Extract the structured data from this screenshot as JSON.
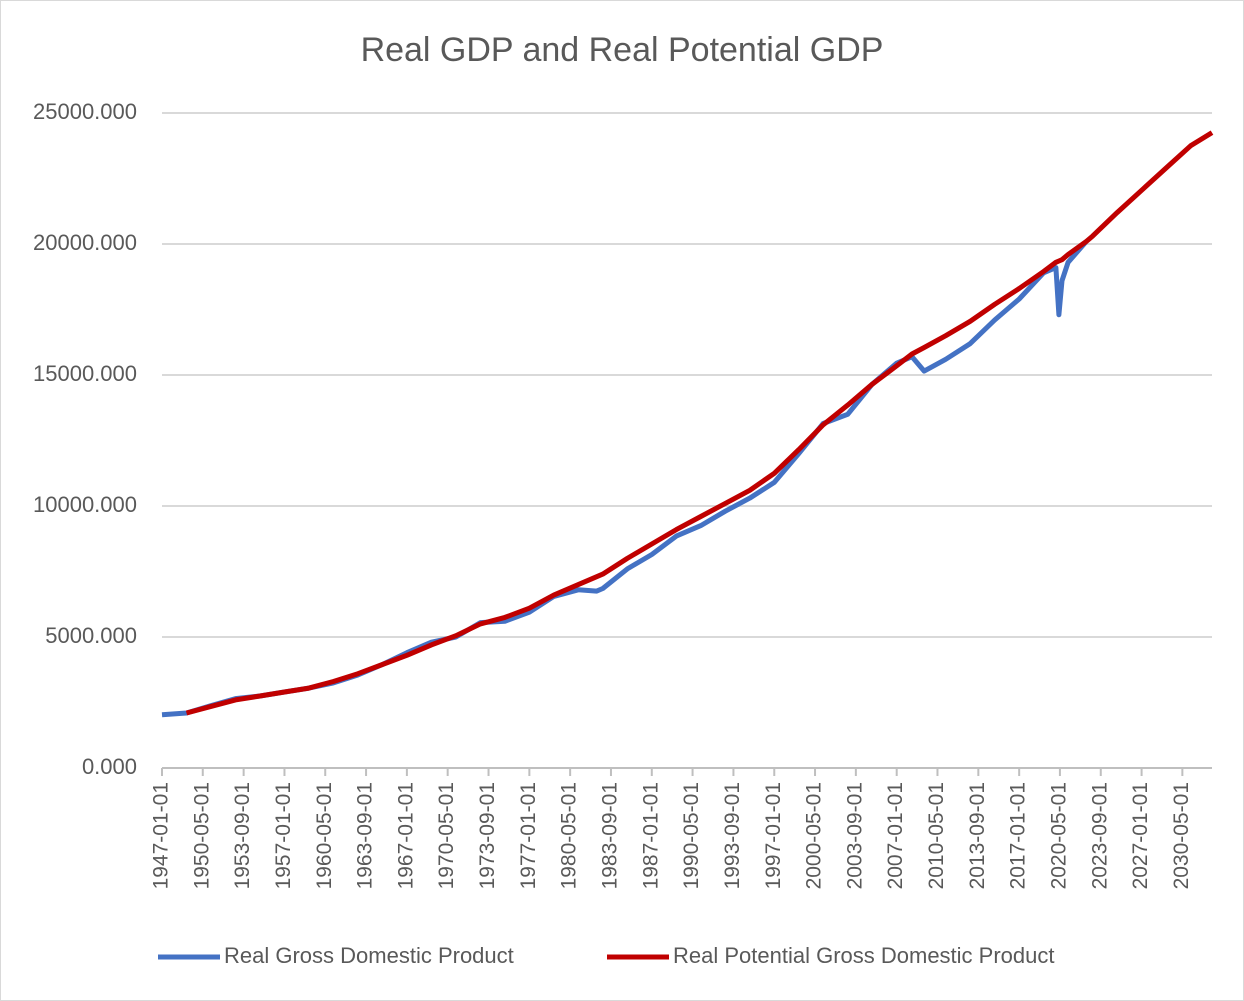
{
  "chart_data": {
    "type": "line",
    "title": "Real GDP and Real Potential GDP",
    "x": [
      "1947-01-01",
      "1949-01-01",
      "1951-01-01",
      "1953-01-01",
      "1955-01-01",
      "1957-01-01",
      "1959-01-01",
      "1961-01-01",
      "1963-01-01",
      "1965-01-01",
      "1967-01-01",
      "1969-01-01",
      "1971-01-01",
      "1973-01-01",
      "1975-01-01",
      "1977-01-01",
      "1979-01-01",
      "1981-01-01",
      "1982-07-01",
      "1983-01-01",
      "1985-01-01",
      "1987-01-01",
      "1989-01-01",
      "1991-01-01",
      "1993-01-01",
      "1995-01-01",
      "1997-01-01",
      "1999-01-01",
      "2001-01-01",
      "2003-01-01",
      "2005-01-01",
      "2007-01-01",
      "2008-04-01",
      "2009-04-01",
      "2011-01-01",
      "2013-01-01",
      "2015-01-01",
      "2017-01-01",
      "2019-01-01",
      "2020-01-01",
      "2020-04-01",
      "2020-07-01",
      "2021-01-01",
      "2022-07-01",
      "2023-01-01",
      "2025-01-01",
      "2027-01-01",
      "2029-01-01",
      "2031-01-01",
      "2032-10-01"
    ],
    "series": [
      {
        "name": "Real Gross Domestic Product",
        "color": "#4472c4",
        "values": [
          2030,
          2100,
          2380,
          2650,
          2750,
          2900,
          3050,
          3250,
          3550,
          3950,
          4400,
          4800,
          5000,
          5550,
          5600,
          5950,
          6550,
          6800,
          6750,
          6850,
          7600,
          8150,
          8850,
          9250,
          9800,
          10300,
          10900,
          12000,
          13150,
          13500,
          14650,
          15450,
          15700,
          15150,
          15600,
          16200,
          17100,
          17900,
          18900,
          19100,
          17300,
          18600,
          19300,
          20100,
          null,
          null,
          null,
          null,
          null,
          null
        ]
      },
      {
        "name": "Real Potential Gross Domestic Product",
        "color": "#c00000",
        "values": [
          null,
          2100,
          2350,
          2600,
          2750,
          2900,
          3050,
          3300,
          3600,
          3950,
          4300,
          4700,
          5050,
          5500,
          5750,
          6100,
          6600,
          7000,
          7300,
          7400,
          8000,
          8550,
          9100,
          9600,
          10100,
          10600,
          11250,
          12150,
          13100,
          13850,
          14650,
          15350,
          15800,
          16050,
          16500,
          17050,
          17700,
          18300,
          18950,
          19300,
          19350,
          19400,
          19600,
          20100,
          20300,
          21200,
          22050,
          22900,
          23750,
          24250
        ]
      }
    ],
    "xlim": [
      "1947-01-01",
      "2032-10-01"
    ],
    "xticks": [
      "1947-01-01",
      "1950-05-01",
      "1953-09-01",
      "1957-01-01",
      "1960-05-01",
      "1963-09-01",
      "1967-01-01",
      "1970-05-01",
      "1973-09-01",
      "1977-01-01",
      "1980-05-01",
      "1983-09-01",
      "1987-01-01",
      "1990-05-01",
      "1993-09-01",
      "1997-01-01",
      "2000-05-01",
      "2003-09-01",
      "2007-01-01",
      "2010-05-01",
      "2013-09-01",
      "2017-01-01",
      "2020-05-01",
      "2023-09-01",
      "2027-01-01",
      "2030-05-01"
    ],
    "ylim": [
      0,
      25000
    ],
    "yticks": [
      {
        "value": 0,
        "label": "0.000"
      },
      {
        "value": 5000,
        "label": "5000.000"
      },
      {
        "value": 10000,
        "label": "10000.000"
      },
      {
        "value": 15000,
        "label": "15000.000"
      },
      {
        "value": 20000,
        "label": "20000.000"
      },
      {
        "value": 25000,
        "label": "25000.000"
      }
    ],
    "grid": true,
    "legend": "bottom"
  }
}
